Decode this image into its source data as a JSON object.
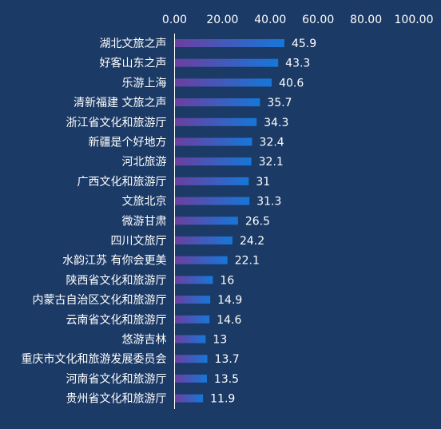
{
  "colors": {
    "background": "#1b3a66",
    "text": "#ffffff",
    "axis": "#ffffff",
    "bar_start": "#6b3fa0",
    "bar_end": "#1677d9"
  },
  "chart_data": {
    "type": "bar",
    "orientation": "horizontal",
    "title": "",
    "xlabel": "",
    "ylabel": "",
    "xlim": [
      0,
      100
    ],
    "x_ticks": [
      "0.00",
      "20.00",
      "40.00",
      "60.00",
      "80.00",
      "100.00"
    ],
    "x_axis_position": "top",
    "grid": false,
    "legend": "none",
    "categories": [
      "湖北文旅之声",
      "好客山东之声",
      "乐游上海",
      "清新福建 文旅之声",
      "浙江省文化和旅游厅",
      "新疆是个好地方",
      "河北旅游",
      "广西文化和旅游厅",
      "文旅北京",
      "微游甘肃",
      "四川文旅厅",
      "水韵江苏 有你会更美",
      "陕西省文化和旅游厅",
      "内蒙古自治区文化和旅游厅",
      "云南省文化和旅游厅",
      "悠游吉林",
      "重庆市文化和旅游发展委员会",
      "河南省文化和旅游厅",
      "贵州省文化和旅游厅"
    ],
    "values": [
      45.9,
      43.3,
      40.6,
      35.7,
      34.3,
      32.4,
      32.1,
      31,
      31.3,
      26.5,
      24.2,
      22.1,
      16,
      14.9,
      14.6,
      13,
      13.7,
      13.5,
      11.9
    ],
    "value_labels": [
      "45.9",
      "43.3",
      "40.6",
      "35.7",
      "34.3",
      "32.4",
      "32.1",
      "31",
      "31.3",
      "26.5",
      "24.2",
      "22.1",
      "16",
      "14.9",
      "14.6",
      "13",
      "13.7",
      "13.5",
      "11.9"
    ]
  }
}
